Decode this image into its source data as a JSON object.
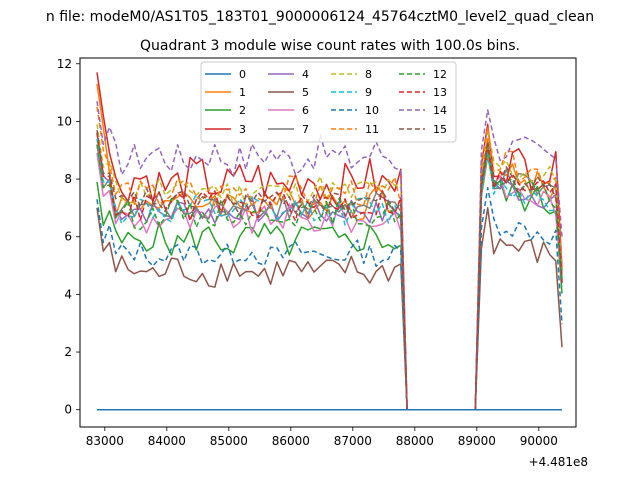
{
  "figure": {
    "suptitle": "n file: modeM0/AS1T05_183T01_9000006124_45764cztM0_level2_quad_clean",
    "offset_label": "+4.481e8"
  },
  "chart_data": {
    "type": "line",
    "title": "Quadrant 3 module wise count rates with 100.0s bins.",
    "xlabel": "",
    "ylabel": "",
    "x_offset": 448100000,
    "xlim": [
      82600,
      90600
    ],
    "ylim": [
      -0.6,
      12.2
    ],
    "xticks": [
      83000,
      84000,
      85000,
      86000,
      87000,
      88000,
      89000,
      90000
    ],
    "yticks": [
      0,
      2,
      4,
      6,
      8,
      10,
      12
    ],
    "grid": false,
    "legend": {
      "placement": "top-center",
      "columns": 4
    },
    "segments": [
      {
        "start": 82875,
        "end": 87775,
        "step": 100
      },
      {
        "start": 89075,
        "end": 90375,
        "step": 100
      }
    ],
    "gap": {
      "x": [
        87875,
        88975
      ]
    },
    "series": [
      {
        "name": "0",
        "color": "#1f77b4",
        "dash": "solid",
        "base": 0.0,
        "seg2": 0.0,
        "start": 0.0,
        "amp": 0.0
      },
      {
        "name": "1",
        "color": "#ff7f0e",
        "dash": "solid",
        "base": 7.2,
        "seg2": 8.3,
        "start": 11.3,
        "amp": 0.55
      },
      {
        "name": "2",
        "color": "#2ca02c",
        "dash": "solid",
        "base": 5.9,
        "seg2": 7.7,
        "start": 7.9,
        "amp": 0.55
      },
      {
        "name": "3",
        "color": "#d62728",
        "dash": "solid",
        "base": 7.9,
        "seg2": 8.8,
        "start": 11.7,
        "amp": 0.75
      },
      {
        "name": "4",
        "color": "#9467bd",
        "dash": "solid",
        "base": 6.9,
        "seg2": 7.9,
        "start": 9.6,
        "amp": 0.45
      },
      {
        "name": "5",
        "color": "#8c564b",
        "dash": "solid",
        "base": 4.8,
        "seg2": 5.9,
        "start": 7.0,
        "amp": 0.5
      },
      {
        "name": "6",
        "color": "#e377c2",
        "dash": "solid",
        "base": 6.6,
        "seg2": 7.8,
        "start": 8.9,
        "amp": 0.5
      },
      {
        "name": "7",
        "color": "#7f7f7f",
        "dash": "solid",
        "base": 7.0,
        "seg2": 8.1,
        "start": 9.2,
        "amp": 0.45
      },
      {
        "name": "8",
        "color": "#bcbd22",
        "dash": "dashed",
        "base": 7.6,
        "seg2": 8.6,
        "start": 9.9,
        "amp": 0.5
      },
      {
        "name": "9",
        "color": "#17becf",
        "dash": "dashed",
        "base": 6.9,
        "seg2": 7.9,
        "start": 9.4,
        "amp": 0.45
      },
      {
        "name": "10",
        "color": "#1f77b4",
        "dash": "dashed",
        "base": 5.4,
        "seg2": 6.6,
        "start": 7.3,
        "amp": 0.4
      },
      {
        "name": "11",
        "color": "#ff7f0e",
        "dash": "dashed",
        "base": 7.5,
        "seg2": 8.7,
        "start": 10.5,
        "amp": 0.5
      },
      {
        "name": "12",
        "color": "#2ca02c",
        "dash": "dashed",
        "base": 6.8,
        "seg2": 7.9,
        "start": 9.2,
        "amp": 0.45
      },
      {
        "name": "13",
        "color": "#d62728",
        "dash": "dashed",
        "base": 7.1,
        "seg2": 8.1,
        "start": 9.6,
        "amp": 0.5
      },
      {
        "name": "14",
        "color": "#9467bd",
        "dash": "dashed",
        "base": 8.8,
        "seg2": 9.3,
        "start": 10.7,
        "amp": 0.6
      },
      {
        "name": "15",
        "color": "#8c564b",
        "dash": "dashed",
        "base": 7.2,
        "seg2": 8.2,
        "start": 9.7,
        "amp": 0.45
      }
    ]
  }
}
